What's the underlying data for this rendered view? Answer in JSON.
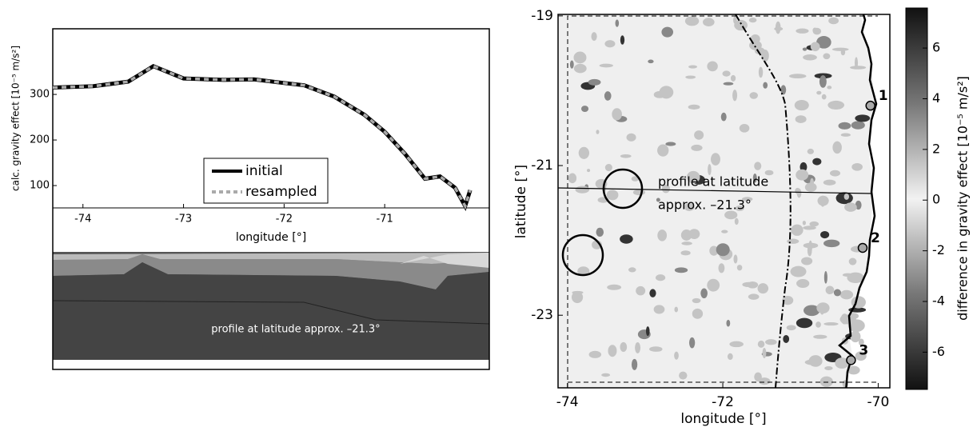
{
  "chart_data": [
    {
      "type": "line",
      "ylabel": "calc. gravity effect [10⁻⁵ m/s²]",
      "xlabel": "longitude [°]",
      "annotation": "profile at latitude approx. –21.3°",
      "x": [
        -74.3,
        -73.9,
        -73.55,
        -73.3,
        -73.0,
        -72.6,
        -72.3,
        -72.0,
        -71.8,
        -71.5,
        -71.2,
        -71.0,
        -70.8,
        -70.6,
        -70.45,
        -70.3,
        -70.2,
        -70.15
      ],
      "series": [
        {
          "name": "initial",
          "color": "#000000",
          "linestyle": "solid",
          "values": [
            315,
            318,
            328,
            362,
            335,
            332,
            333,
            325,
            320,
            295,
            255,
            218,
            170,
            115,
            120,
            95,
            55,
            90
          ]
        },
        {
          "name": "resampled",
          "color": "#aaaaaa",
          "linestyle": "dashed",
          "values": [
            315,
            318,
            328,
            362,
            335,
            332,
            333,
            325,
            320,
            295,
            255,
            218,
            170,
            115,
            120,
            95,
            55,
            90
          ]
        }
      ],
      "xlim": [
        -74.3,
        -69.96
      ],
      "ylim": [
        51,
        444
      ],
      "xticks": [
        -74,
        -73,
        -72,
        -71
      ],
      "yticks": [
        100,
        200,
        300
      ]
    },
    {
      "type": "contour",
      "xlabel": "longitude [°]",
      "ylabel": "latitude [°]",
      "annotations": [
        "profile at latitude",
        "approx. –21.3°"
      ],
      "xlim": [
        -74.12,
        -69.85
      ],
      "ylim": [
        -23.97,
        -18.98
      ],
      "xticks": [
        -74,
        -72,
        -70
      ],
      "yticks": [
        -19,
        -21,
        -23
      ],
      "points": [
        {
          "label": "1",
          "x": -70.1,
          "y": -20.2
        },
        {
          "label": "2",
          "x": -70.2,
          "y": -22.1
        },
        {
          "label": "3",
          "x": -70.35,
          "y": -23.6
        }
      ],
      "colorbar_label": "difference in gravity effect [10⁻⁵ m/s²]",
      "clim": [
        -7.47,
        7.58
      ],
      "cticks": [
        -6,
        -4,
        -2,
        0,
        2,
        4,
        6
      ]
    }
  ]
}
